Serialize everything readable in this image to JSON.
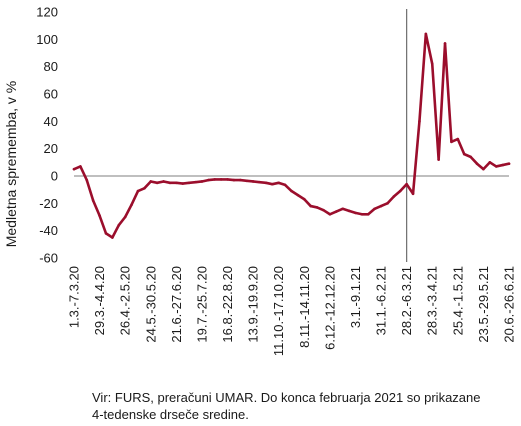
{
  "chart_data": {
    "type": "line",
    "ylabel": "Medletna sprememba, v %",
    "ylim": [
      -60,
      120
    ],
    "yticks": [
      -60,
      -40,
      -20,
      0,
      20,
      40,
      60,
      80,
      100,
      120
    ],
    "grid": false,
    "legend": "none",
    "x_tick_labels": [
      "1.3.-7.3.20",
      "29.3.-4.4.20",
      "26.4.-2.5.20",
      "24.5.-30.5.20",
      "21.6.-27.6.20",
      "19.7.-25.7.20",
      "16.8.-22.8.20",
      "13.9.-19.9.20",
      "11.10.-17.10.20",
      "8.11.-14.11.20",
      "6.12.-12.12.20",
      "3.1.-9.1.21",
      "31.1.-6.2.21",
      "28.2.-6.3.21",
      "28.3.-3.4.21",
      "25.4.-1.5.21",
      "23.5.-29.5.21",
      "20.6.-26.6.21"
    ],
    "vertical_marker_at": "28.2.-6.3.21",
    "series": [
      {
        "color": "#9b0e2c",
        "values": [
          5,
          7,
          -3,
          -18,
          -29,
          -42,
          -45,
          -36,
          -30,
          -21,
          -11,
          -9,
          -4,
          -5,
          -4,
          -5,
          -5,
          -5.5,
          -5,
          -4.5,
          -4,
          -3,
          -2.5,
          -2.5,
          -2.5,
          -3,
          -3,
          -3.5,
          -4,
          -4.5,
          -5,
          -6,
          -5,
          -6.5,
          -11,
          -14,
          -17,
          -22,
          -23,
          -25,
          -28,
          -26,
          -24,
          -25.5,
          -27,
          -28,
          -28,
          -24,
          -22,
          -20,
          -15,
          -11,
          -6,
          -13,
          40,
          104,
          82,
          12,
          97,
          25,
          27,
          16,
          14,
          9,
          5,
          10,
          7,
          8,
          9
        ]
      }
    ]
  },
  "source_note": {
    "line1": "Vir: FURS, preračuni UMAR. Do konca februarja 2021 so prikazane",
    "line2": "4-tedenske drseče sredine."
  }
}
